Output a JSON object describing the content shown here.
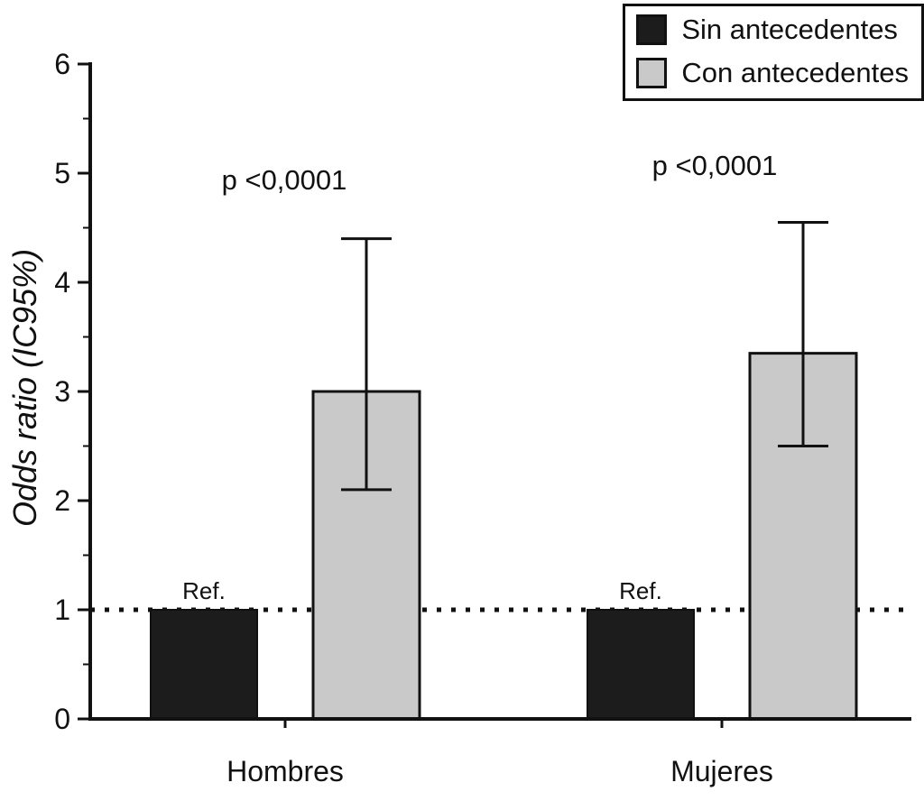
{
  "chart_data": {
    "type": "bar",
    "title": "",
    "ylabel": "Odds ratio (IC95%)",
    "xlabel": "",
    "ylim": [
      0,
      6
    ],
    "yticks": [
      0,
      1,
      2,
      3,
      4,
      5,
      6
    ],
    "minor_tick_step": 0.5,
    "categories": [
      "Hombres",
      "Mujeres"
    ],
    "series": [
      {
        "name": "Sin antecedentes",
        "color": "#1c1c1c",
        "values": [
          1.0,
          1.0
        ],
        "bar_labels": [
          "Ref.",
          "Ref."
        ]
      },
      {
        "name": "Con antecedentes",
        "color": "#c9c9c9",
        "values": [
          3.0,
          3.35
        ],
        "ci_low": [
          2.1,
          2.5
        ],
        "ci_high": [
          4.4,
          4.55
        ]
      }
    ],
    "annotations": [
      {
        "text": "p <0,0001",
        "group": "Hombres"
      },
      {
        "text": "p <0,0001",
        "group": "Mujeres"
      }
    ],
    "reference_line": {
      "y": 1.0,
      "style": "dotted",
      "color": "#111111"
    },
    "legend": [
      "Sin antecedentes",
      "Con antecedentes"
    ],
    "legend_position": "top-right",
    "grid": false,
    "axis_color": "#111111"
  }
}
